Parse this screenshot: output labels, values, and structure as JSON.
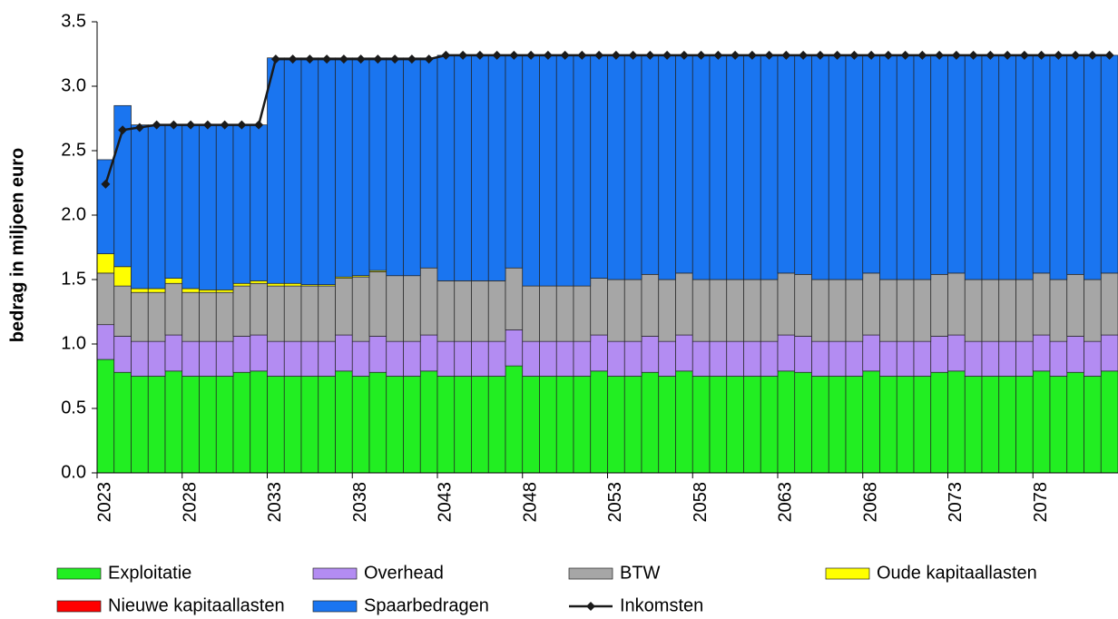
{
  "chart_data": {
    "type": "bar",
    "stacked": true,
    "ylabel": "bedrag in miljoen euro",
    "categories": [
      "2023",
      null,
      null,
      null,
      null,
      "2028",
      null,
      null,
      null,
      null,
      "2033",
      null,
      null,
      null,
      null,
      "2038",
      null,
      null,
      null,
      null,
      "2043",
      null,
      null,
      null,
      null,
      "2048",
      null,
      null,
      null,
      null,
      "2053",
      null,
      null,
      null,
      null,
      "2058",
      null,
      null,
      null,
      null,
      "2063",
      null,
      null,
      null,
      null,
      "2068",
      null,
      null,
      null,
      null,
      "2073",
      null,
      null,
      null,
      null,
      "2078",
      null,
      null,
      null,
      null
    ],
    "ylim": [
      0,
      3.5
    ],
    "yticks": [
      {
        "value": 0,
        "label": "0.0"
      },
      0.5,
      {
        "value": 1,
        "label": "1.0"
      },
      1.5,
      {
        "value": 2,
        "label": "2.0"
      },
      2.5,
      {
        "value": 3,
        "label": "3.0"
      },
      3.5
    ],
    "series": [
      {
        "name": "Exploitatie",
        "color": "#22ee22",
        "values": [
          0.88,
          0.78,
          0.75,
          0.75,
          0.79,
          0.75,
          0.75,
          0.75,
          0.78,
          0.79,
          0.75,
          0.75,
          0.75,
          0.75,
          0.79,
          0.75,
          0.78,
          0.75,
          0.75,
          0.79,
          0.75,
          0.75,
          0.75,
          0.75,
          0.83,
          0.75,
          0.75,
          0.75,
          0.75,
          0.79,
          0.75,
          0.75,
          0.78,
          0.75,
          0.79,
          0.75,
          0.75,
          0.75,
          0.75,
          0.75,
          0.79,
          0.78,
          0.75,
          0.75,
          0.75,
          0.79,
          0.75,
          0.75,
          0.75,
          0.78,
          0.79,
          0.75,
          0.75,
          0.75,
          0.75,
          0.79,
          0.75,
          0.78,
          0.75,
          0.79
        ]
      },
      {
        "name": "Overhead",
        "color": "#b38cf2",
        "values": [
          0.27,
          0.28,
          0.27,
          0.27,
          0.28,
          0.27,
          0.27,
          0.27,
          0.28,
          0.28,
          0.27,
          0.27,
          0.27,
          0.27,
          0.28,
          0.27,
          0.28,
          0.27,
          0.27,
          0.28,
          0.27,
          0.27,
          0.27,
          0.27,
          0.28,
          0.27,
          0.27,
          0.27,
          0.27,
          0.28,
          0.27,
          0.27,
          0.28,
          0.27,
          0.28,
          0.27,
          0.27,
          0.27,
          0.27,
          0.27,
          0.28,
          0.28,
          0.27,
          0.27,
          0.27,
          0.28,
          0.27,
          0.27,
          0.27,
          0.28,
          0.28,
          0.27,
          0.27,
          0.27,
          0.27,
          0.28,
          0.27,
          0.28,
          0.27,
          0.28
        ]
      },
      {
        "name": "BTW",
        "color": "#a6a6a6",
        "values": [
          0.4,
          0.39,
          0.38,
          0.38,
          0.4,
          0.38,
          0.38,
          0.38,
          0.39,
          0.4,
          0.43,
          0.43,
          0.43,
          0.43,
          0.44,
          0.5,
          0.5,
          0.51,
          0.51,
          0.52,
          0.47,
          0.47,
          0.47,
          0.47,
          0.48,
          0.43,
          0.43,
          0.43,
          0.43,
          0.44,
          0.48,
          0.48,
          0.48,
          0.48,
          0.48,
          0.48,
          0.48,
          0.48,
          0.48,
          0.48,
          0.48,
          0.48,
          0.48,
          0.48,
          0.48,
          0.48,
          0.48,
          0.48,
          0.48,
          0.48,
          0.48,
          0.48,
          0.48,
          0.48,
          0.48,
          0.48,
          0.48,
          0.48,
          0.48,
          0.48
        ]
      },
      {
        "name": "Oude kapitaallasten",
        "color": "#ffff00",
        "values": [
          0.15,
          0.15,
          0.03,
          0.03,
          0.04,
          0.03,
          0.02,
          0.02,
          0.02,
          0.02,
          0.02,
          0.02,
          0.01,
          0.01,
          0.01,
          0.01,
          0.01,
          0,
          0,
          0,
          0,
          0,
          0,
          0,
          0,
          0,
          0,
          0,
          0,
          0,
          0,
          0,
          0,
          0,
          0,
          0,
          0,
          0,
          0,
          0,
          0,
          0,
          0,
          0,
          0,
          0,
          0,
          0,
          0,
          0,
          0,
          0,
          0,
          0,
          0,
          0,
          0,
          0,
          0,
          0
        ]
      },
      {
        "name": "Nieuwe kapitaallasten",
        "color": "#ff0000",
        "values": [
          0,
          0,
          0,
          0,
          0,
          0,
          0,
          0,
          0,
          0,
          0,
          0,
          0,
          0,
          0,
          0,
          0,
          0,
          0,
          0,
          0,
          0,
          0,
          0,
          0,
          0,
          0,
          0,
          0,
          0,
          0,
          0,
          0,
          0,
          0,
          0,
          0,
          0,
          0,
          0,
          0,
          0,
          0,
          0,
          0,
          0,
          0,
          0,
          0,
          0,
          0,
          0,
          0,
          0,
          0,
          0,
          0,
          0,
          0,
          0
        ]
      },
      {
        "name": "Spaarbedragen",
        "color": "#1a75f0",
        "values": [
          0.73,
          1.25,
          1.27,
          1.27,
          1.19,
          1.27,
          1.28,
          1.28,
          1.23,
          1.21,
          1.75,
          1.75,
          1.76,
          1.76,
          1.7,
          1.69,
          1.65,
          1.69,
          1.69,
          1.63,
          1.75,
          1.75,
          1.75,
          1.75,
          1.65,
          1.79,
          1.79,
          1.79,
          1.79,
          1.73,
          1.74,
          1.74,
          1.7,
          1.74,
          1.69,
          1.74,
          1.74,
          1.74,
          1.74,
          1.74,
          1.69,
          1.7,
          1.74,
          1.74,
          1.74,
          1.69,
          1.74,
          1.74,
          1.74,
          1.7,
          1.69,
          1.74,
          1.74,
          1.74,
          1.74,
          1.69,
          1.74,
          1.7,
          1.74,
          1.69
        ]
      },
      {
        "name": "Inkomsten",
        "color": "#1a1a1a",
        "type": "line",
        "values": [
          2.24,
          2.66,
          2.68,
          2.7,
          2.7,
          2.7,
          2.7,
          2.7,
          2.7,
          2.7,
          3.21,
          3.21,
          3.21,
          3.21,
          3.21,
          3.21,
          3.21,
          3.21,
          3.21,
          3.21,
          3.24,
          3.24,
          3.24,
          3.24,
          3.24,
          3.24,
          3.24,
          3.24,
          3.24,
          3.24,
          3.24,
          3.24,
          3.24,
          3.24,
          3.24,
          3.24,
          3.24,
          3.24,
          3.24,
          3.24,
          3.24,
          3.24,
          3.24,
          3.24,
          3.24,
          3.24,
          3.24,
          3.24,
          3.24,
          3.24,
          3.24,
          3.24,
          3.24,
          3.24,
          3.24,
          3.24,
          3.24,
          3.24,
          3.24,
          3.24
        ]
      }
    ]
  }
}
